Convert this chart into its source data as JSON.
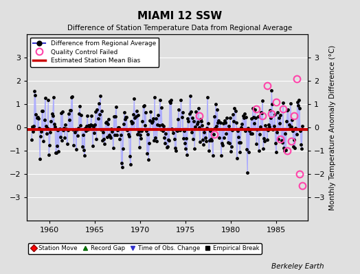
{
  "title": "MIAMI 12 SSW",
  "subtitle": "Difference of Station Temperature Data from Regional Average",
  "ylabel_right": "Monthly Temperature Anomaly Difference (°C)",
  "ylim": [
    -4,
    4
  ],
  "xlim": [
    1957.5,
    1988.5
  ],
  "xticks": [
    1960,
    1965,
    1970,
    1975,
    1980,
    1985
  ],
  "yticks": [
    -3,
    -2,
    -1,
    0,
    1,
    2,
    3
  ],
  "yticks_right": [
    -3,
    -2,
    -1,
    0,
    1,
    2,
    3
  ],
  "bias_line_y": -0.08,
  "bias_color": "#cc0000",
  "line_color": "#3333cc",
  "line_color_light": "#aaaaff",
  "marker_color": "#000000",
  "qc_failed_color": "#ff44aa",
  "background_color": "#e0e0e0",
  "plot_bg_color": "#e0e0e0",
  "grid_color": "#ffffff",
  "watermark": "Berkeley Earth",
  "seed": 12345,
  "n_years": 30,
  "start_year": 1958.0
}
